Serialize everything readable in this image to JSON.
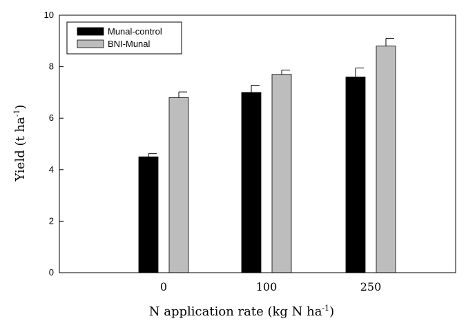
{
  "chart_data": {
    "type": "bar",
    "categories": [
      "0",
      "100",
      "250"
    ],
    "series": [
      {
        "name": "Munal-control",
        "color": "#000000",
        "values": [
          4.5,
          7.0,
          7.6
        ],
        "errors": [
          0.12,
          0.28,
          0.35
        ]
      },
      {
        "name": "BNI-Munal",
        "color": "#bdbdbd",
        "values": [
          6.8,
          7.7,
          8.8
        ],
        "errors": [
          0.22,
          0.17,
          0.3
        ]
      }
    ],
    "ylim": [
      0,
      10
    ],
    "yticks": [
      "0",
      "2",
      "4",
      "6",
      "8",
      "10"
    ],
    "ylabel": {
      "main": "Yield (t ha",
      "sup": "-1",
      "close": ")"
    },
    "xlabel": {
      "main": "N application rate (kg N ha",
      "sup": "-1",
      "close": ")"
    },
    "legend_position": "top-left",
    "grid": false
  }
}
